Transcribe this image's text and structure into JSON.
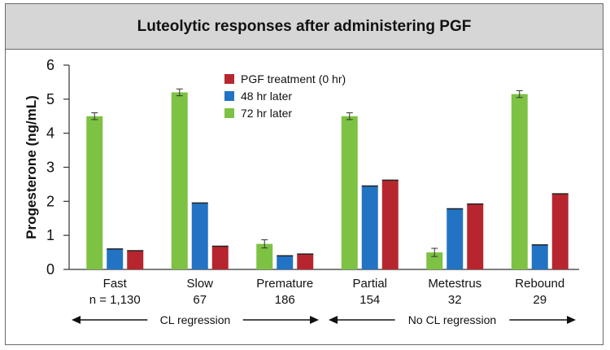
{
  "chart_data": {
    "type": "bar",
    "title": "Luteolytic responses after administering PGF",
    "ylabel": "Progesterone (ng/mL)",
    "xlabel": "",
    "ylim": [
      0,
      6
    ],
    "yticks": [
      0,
      1,
      2,
      3,
      4,
      5,
      6
    ],
    "grid": false,
    "legend_position": "top-center",
    "categories": [
      "Fast",
      "Slow",
      "Premature",
      "Partial",
      "Metestrus",
      "Rebound"
    ],
    "category_counts": [
      "n = 1,130",
      "67",
      "186",
      "154",
      "32",
      "29"
    ],
    "series": [
      {
        "name": "72 hr later",
        "color": "#7dc242",
        "values": [
          4.5,
          5.2,
          0.75,
          4.5,
          0.5,
          5.15
        ],
        "errors": [
          0.1,
          0.1,
          0.12,
          0.1,
          0.12,
          0.1
        ]
      },
      {
        "name": "48 hr later",
        "color": "#2273c3",
        "values": [
          0.6,
          1.95,
          0.4,
          2.45,
          1.78,
          0.72
        ],
        "errors": [
          0.02,
          0.02,
          0.02,
          0.02,
          0.02,
          0.02
        ]
      },
      {
        "name": "PGF treatment (0 hr)",
        "color": "#b7262e",
        "values": [
          0.55,
          0.68,
          0.45,
          2.62,
          1.92,
          2.22
        ],
        "errors": [
          0.02,
          0.02,
          0.02,
          0.02,
          0.02,
          0.02
        ]
      }
    ],
    "legend_order": [
      "PGF treatment (0 hr)",
      "48 hr later",
      "72 hr later"
    ],
    "groups": [
      {
        "label": "CL regression",
        "categories": [
          "Fast",
          "Slow",
          "Premature"
        ]
      },
      {
        "label": "No CL regression",
        "categories": [
          "Partial",
          "Metestrus",
          "Rebound"
        ]
      }
    ]
  }
}
